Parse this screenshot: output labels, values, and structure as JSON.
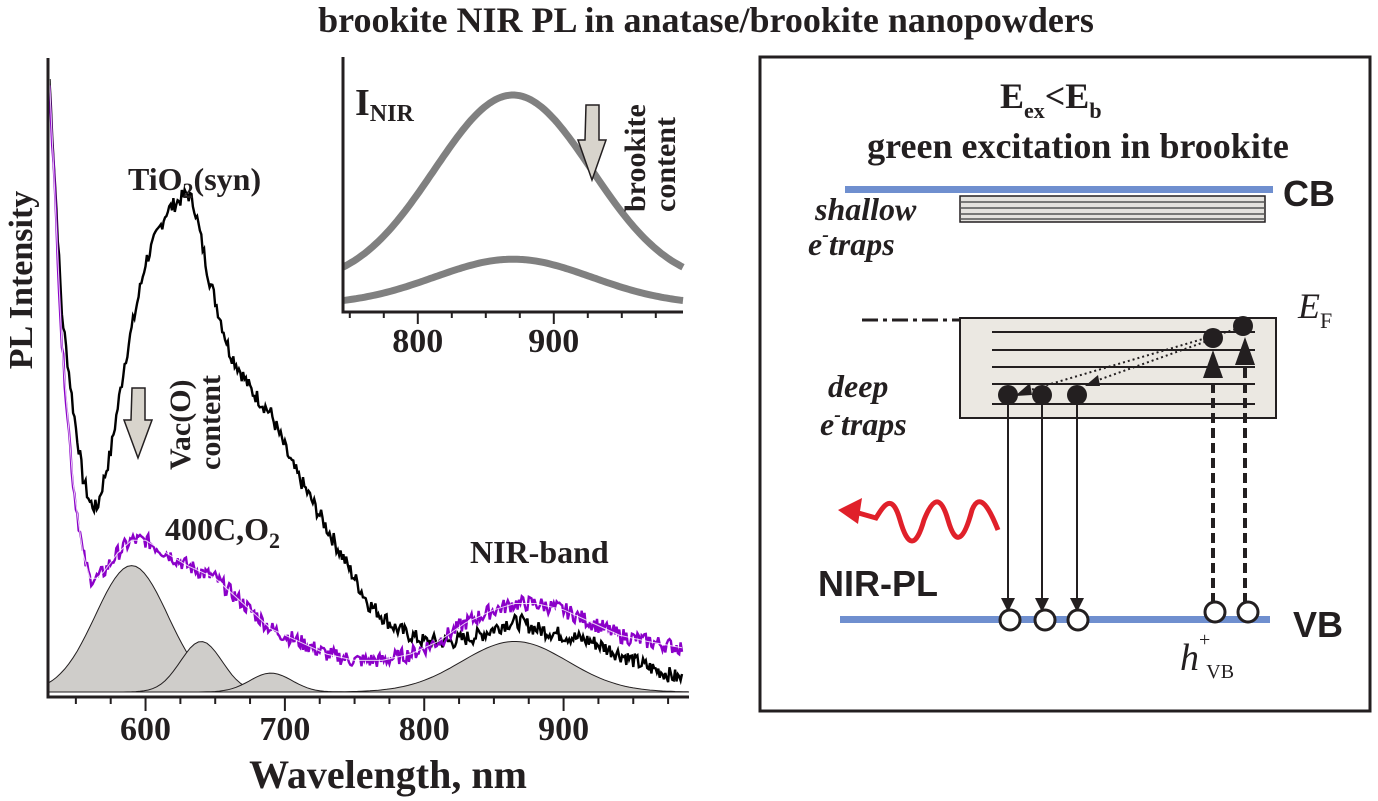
{
  "title": "brookite NIR PL in anatase/brookite nanopowders",
  "chart_data": {
    "type": "line",
    "xlabel": "Wavelength, nm",
    "ylabel": "PL Intensity",
    "xlim": [
      530,
      990
    ],
    "xticks": [
      600,
      700,
      800,
      900
    ],
    "grid": false,
    "series": [
      {
        "name": "TiO2(syn)",
        "color": "#000000",
        "x": [
          531,
          540,
          548,
          555,
          560,
          565,
          575,
          585,
          600,
          615,
          625,
          630,
          635,
          645,
          660,
          675,
          690,
          705,
          720,
          740,
          760,
          780,
          800,
          820,
          840,
          860,
          870,
          880,
          900,
          920,
          940,
          960,
          985
        ],
        "y": [
          0.97,
          0.6,
          0.45,
          0.34,
          0.3,
          0.29,
          0.38,
          0.52,
          0.68,
          0.76,
          0.78,
          0.79,
          0.77,
          0.66,
          0.54,
          0.48,
          0.44,
          0.36,
          0.3,
          0.22,
          0.14,
          0.1,
          0.08,
          0.08,
          0.09,
          0.11,
          0.11,
          0.1,
          0.09,
          0.08,
          0.06,
          0.04,
          0.02
        ]
      },
      {
        "name": "400C,O2",
        "color": "#8b00c9",
        "x": [
          531,
          540,
          548,
          555,
          560,
          565,
          570,
          580,
          590,
          600,
          615,
          630,
          650,
          670,
          690,
          710,
          730,
          750,
          770,
          790,
          810,
          830,
          850,
          865,
          880,
          900,
          920,
          940,
          960,
          985
        ],
        "y": [
          0.97,
          0.55,
          0.33,
          0.22,
          0.18,
          0.18,
          0.19,
          0.22,
          0.24,
          0.24,
          0.22,
          0.2,
          0.18,
          0.14,
          0.1,
          0.08,
          0.06,
          0.05,
          0.05,
          0.06,
          0.08,
          0.11,
          0.13,
          0.14,
          0.14,
          0.13,
          0.11,
          0.09,
          0.08,
          0.07
        ]
      }
    ],
    "gaussian_components": [
      {
        "center": 590,
        "amplitude": 0.2,
        "width": 26
      },
      {
        "center": 640,
        "amplitude": 0.08,
        "width": 15
      },
      {
        "center": 690,
        "amplitude": 0.03,
        "width": 15
      },
      {
        "center": 865,
        "amplitude": 0.08,
        "width": 38
      }
    ],
    "annotations": [
      "TiO2(syn)",
      "Vac(O) content",
      "400C,O2",
      "NIR-band"
    ],
    "inset": {
      "type": "line",
      "ylabel": "INIR",
      "xlim": [
        745,
        995
      ],
      "xticks": [
        800,
        900
      ],
      "annotation": "brookite content",
      "series": [
        {
          "center": 870,
          "amplitude": 1.0,
          "width": 58,
          "baseline": 0.1
        },
        {
          "center": 870,
          "amplitude": 0.24,
          "width": 58,
          "baseline": 0.0
        }
      ]
    }
  },
  "diagram": {
    "condition_label": "Eex<Eb",
    "subtitle": "green excitation in brookite",
    "cb_label": "CB",
    "vb_label": "VB",
    "shallow_label": "shallow",
    "shallow_traps_label": "e-traps",
    "deep_label": "deep",
    "deep_traps_label": "e-traps",
    "fermi_label": "EF",
    "nirpl_label": "NIR-PL",
    "hole_label": "h+VB",
    "colors": {
      "band": "#6f8fcf",
      "emission": "#e0202a",
      "trap_box": "#ebe8e2"
    }
  }
}
